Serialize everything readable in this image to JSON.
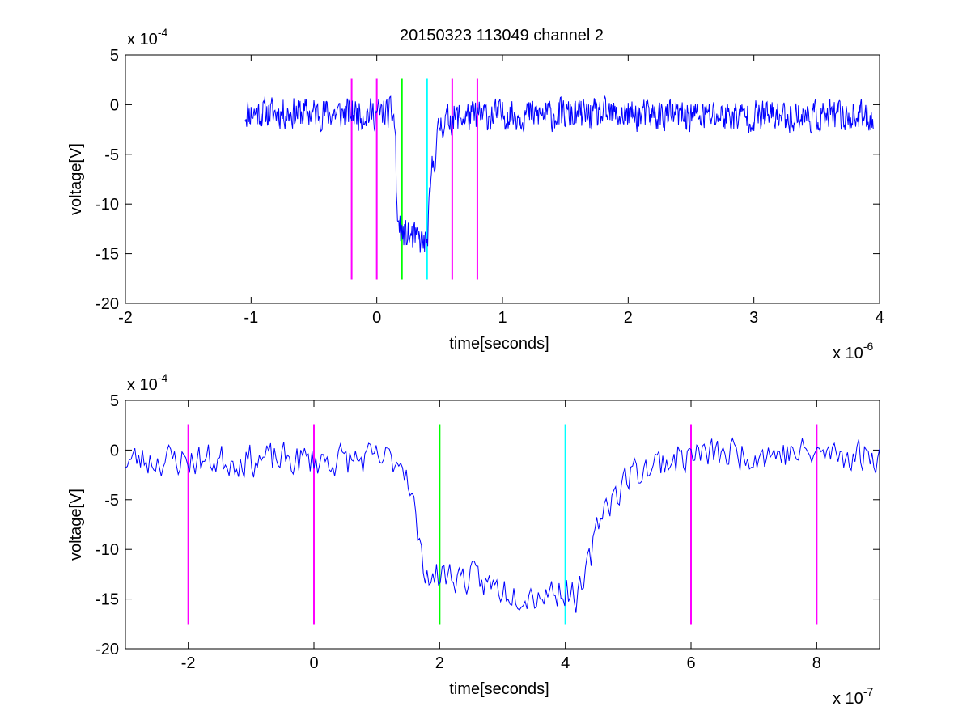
{
  "figure_title": "20150323 113049 channel 2",
  "chart_data": [
    {
      "type": "line",
      "title": "20150323 113049 channel 2",
      "xlabel": "time[seconds]",
      "ylabel": "voltage[V]",
      "x_exponent_label": "x 10",
      "x_exponent": "-6",
      "y_exponent_label": "x 10",
      "y_exponent": "-4",
      "xlim": [
        -2,
        4
      ],
      "ylim": [
        -20,
        5
      ],
      "xticks": [
        -2,
        -1,
        0,
        1,
        2,
        3,
        4
      ],
      "yticks": [
        -20,
        -15,
        -10,
        -5,
        0,
        5
      ],
      "grid": false,
      "series": [
        {
          "color": "#0000ff",
          "noise": 0.9,
          "points": [
            [
              -1.05,
              -0.8
            ],
            [
              0.13,
              -0.9
            ],
            [
              0.15,
              -3.0
            ],
            [
              0.15,
              -8.5
            ],
            [
              0.17,
              -12.0
            ],
            [
              0.2,
              -13.0
            ],
            [
              0.3,
              -13.5
            ],
            [
              0.4,
              -14.0
            ],
            [
              0.42,
              -10.0
            ],
            [
              0.44,
              -6.5
            ],
            [
              0.47,
              -4.5
            ],
            [
              0.5,
              -2.0
            ],
            [
              0.6,
              -1.3
            ],
            [
              1.0,
              -1.0
            ],
            [
              3.95,
              -1.2
            ]
          ]
        }
      ],
      "markers": [
        {
          "x": -0.2,
          "color": "#ff00ff",
          "y0": -17.6,
          "y1": 2.6
        },
        {
          "x": 0.0,
          "color": "#ff00ff",
          "y0": -17.6,
          "y1": 2.6
        },
        {
          "x": 0.2,
          "color": "#00ff00",
          "y0": -17.6,
          "y1": 2.6
        },
        {
          "x": 0.4,
          "color": "#00ffff",
          "y0": -17.6,
          "y1": 2.6
        },
        {
          "x": 0.6,
          "color": "#ff00ff",
          "y0": -17.6,
          "y1": 2.6
        },
        {
          "x": 0.8,
          "color": "#ff00ff",
          "y0": -17.6,
          "y1": 2.6
        }
      ]
    },
    {
      "type": "line",
      "title": "",
      "xlabel": "time[seconds]",
      "ylabel": "voltage[V]",
      "x_exponent_label": "x 10",
      "x_exponent": "-7",
      "y_exponent_label": "x 10",
      "y_exponent": "-4",
      "xlim": [
        -3,
        9
      ],
      "ylim": [
        -20,
        5
      ],
      "xticks": [
        -2,
        0,
        2,
        4,
        6,
        8
      ],
      "yticks": [
        -20,
        -15,
        -10,
        -5,
        0,
        5
      ],
      "grid": false,
      "series": [
        {
          "color": "#0000ff",
          "noise": 1.0,
          "points": [
            [
              -3.0,
              -1.0
            ],
            [
              1.4,
              -1.0
            ],
            [
              1.5,
              -2.5
            ],
            [
              1.6,
              -6.0
            ],
            [
              1.7,
              -11.0
            ],
            [
              1.9,
              -13.0
            ],
            [
              2.1,
              -12.5
            ],
            [
              2.5,
              -13.0
            ],
            [
              3.0,
              -14.0
            ],
            [
              3.5,
              -14.5
            ],
            [
              4.0,
              -14.0
            ],
            [
              4.2,
              -14.8
            ],
            [
              4.3,
              -13.5
            ],
            [
              4.4,
              -11.0
            ],
            [
              4.5,
              -8.0
            ],
            [
              4.6,
              -5.5
            ],
            [
              4.8,
              -4.5
            ],
            [
              5.0,
              -2.5
            ],
            [
              5.5,
              -1.2
            ],
            [
              6.0,
              -0.5
            ],
            [
              7.0,
              -0.3
            ],
            [
              9.0,
              -0.5
            ]
          ]
        }
      ],
      "markers": [
        {
          "x": -2,
          "color": "#ff00ff",
          "y0": -17.6,
          "y1": 2.6
        },
        {
          "x": 0,
          "color": "#ff00ff",
          "y0": -17.6,
          "y1": 2.6
        },
        {
          "x": 2,
          "color": "#00ff00",
          "y0": -17.6,
          "y1": 2.6
        },
        {
          "x": 4,
          "color": "#00ffff",
          "y0": -17.6,
          "y1": 2.6
        },
        {
          "x": 6,
          "color": "#ff00ff",
          "y0": -17.6,
          "y1": 2.6
        },
        {
          "x": 8,
          "color": "#ff00ff",
          "y0": -17.6,
          "y1": 2.6
        }
      ]
    }
  ]
}
